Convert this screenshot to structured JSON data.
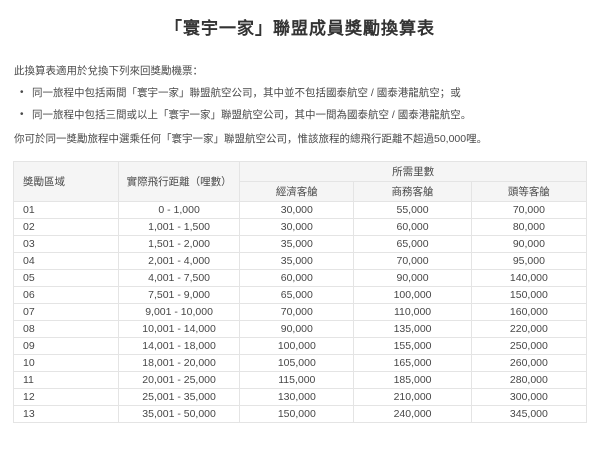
{
  "title": "「寰宇一家」聯盟成員獎勵換算表",
  "intro": "此換算表適用於兌換下列來回獎勵機票：",
  "bullets": [
    "同一旅程中包括兩間「寰宇一家」聯盟航空公司，其中並不包括國泰航空 / 國泰港龍航空；或",
    "同一旅程中包括三間或以上「寰宇一家」聯盟航空公司，其中一間為國泰航空 / 國泰港龍航空。"
  ],
  "note": "你可於同一獎勵旅程中選乘任何「寰宇一家」聯盟航空公司，惟該旅程的總飛行距離不超過50,000哩。",
  "table": {
    "headers": {
      "zone": "獎勵區域",
      "distance": "實際飛行距離（哩數）",
      "miles_required": "所需里數",
      "economy": "經濟客艙",
      "business": "商務客艙",
      "first": "頭等客艙"
    },
    "rows": [
      {
        "zone": "01",
        "distance": "0 - 1,000",
        "economy": "30,000",
        "business": "55,000",
        "first": "70,000"
      },
      {
        "zone": "02",
        "distance": "1,001 - 1,500",
        "economy": "30,000",
        "business": "60,000",
        "first": "80,000"
      },
      {
        "zone": "03",
        "distance": "1,501 - 2,000",
        "economy": "35,000",
        "business": "65,000",
        "first": "90,000"
      },
      {
        "zone": "04",
        "distance": "2,001 - 4,000",
        "economy": "35,000",
        "business": "70,000",
        "first": "95,000"
      },
      {
        "zone": "05",
        "distance": "4,001 - 7,500",
        "economy": "60,000",
        "business": "90,000",
        "first": "140,000"
      },
      {
        "zone": "06",
        "distance": "7,501 - 9,000",
        "economy": "65,000",
        "business": "100,000",
        "first": "150,000"
      },
      {
        "zone": "07",
        "distance": "9,001 - 10,000",
        "economy": "70,000",
        "business": "110,000",
        "first": "160,000"
      },
      {
        "zone": "08",
        "distance": "10,001 - 14,000",
        "economy": "90,000",
        "business": "135,000",
        "first": "220,000"
      },
      {
        "zone": "09",
        "distance": "14,001 - 18,000",
        "economy": "100,000",
        "business": "155,000",
        "first": "250,000"
      },
      {
        "zone": "10",
        "distance": "18,001 - 20,000",
        "economy": "105,000",
        "business": "165,000",
        "first": "260,000"
      },
      {
        "zone": "11",
        "distance": "20,001 - 25,000",
        "economy": "115,000",
        "business": "185,000",
        "first": "280,000"
      },
      {
        "zone": "12",
        "distance": "25,001 - 35,000",
        "economy": "130,000",
        "business": "210,000",
        "first": "300,000"
      },
      {
        "zone": "13",
        "distance": "35,001 - 50,000",
        "economy": "150,000",
        "business": "240,000",
        "first": "345,000"
      }
    ]
  },
  "colors": {
    "header_bg": "#f5f5f5",
    "border": "#e4e4e4",
    "body_text": "#4a4a4a",
    "title_text": "#333333",
    "page_bg": "#ffffff"
  }
}
